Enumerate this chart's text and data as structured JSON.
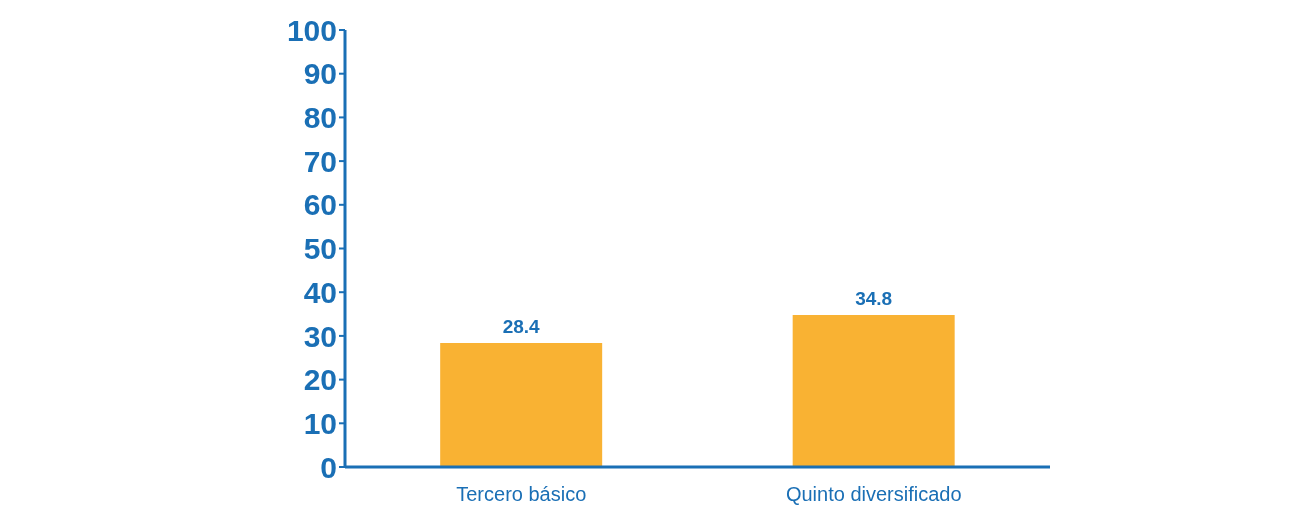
{
  "chart_data": {
    "type": "bar",
    "categories": [
      "Tercero básico",
      "Quinto diversificado"
    ],
    "values": [
      28.4,
      34.8
    ],
    "color": "#f9b233",
    "ylim": [
      0,
      100
    ],
    "yticks": [
      0,
      10,
      20,
      30,
      40,
      50,
      60,
      70,
      80,
      90,
      100
    ],
    "data_labels": true
  }
}
